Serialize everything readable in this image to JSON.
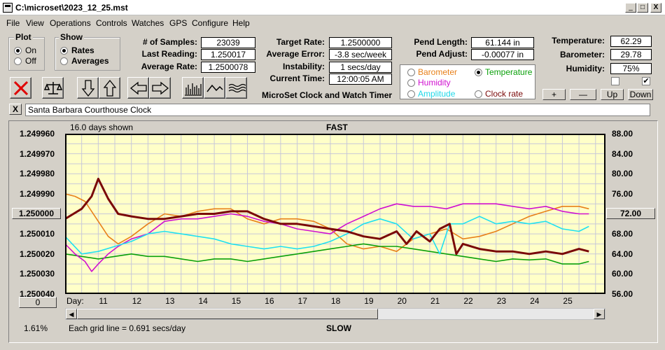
{
  "window": {
    "title": "C:\\microset\\2023_12_25.mst",
    "min": "_",
    "max": "□",
    "close": "X"
  },
  "menu": [
    "File",
    "View",
    "Operations",
    "Controls",
    "Watches",
    "GPS",
    "Configure",
    "Help"
  ],
  "plot": {
    "title": "Plot",
    "on": "On",
    "off": "Off",
    "selected": "On"
  },
  "show": {
    "title": "Show",
    "rates": "Rates",
    "averages": "Averages",
    "selected": "Rates"
  },
  "stats": {
    "samples_label": "# of Samples:",
    "samples": "23039",
    "last_label": "Last Reading:",
    "last": "1.250017",
    "avg_label": "Average Rate:",
    "avg": "1.2500078"
  },
  "rates": {
    "target_label": "Target Rate:",
    "target": "1.2500000",
    "error_label": "Average Error:",
    "error": "-3.8 sec/week",
    "instab_label": "Instability:",
    "instab": "1 secs/day",
    "time_label": "Current Time:",
    "time": "12:00:05 AM"
  },
  "pend": {
    "length_label": "Pend Length:",
    "length": "61.144 in",
    "adjust_label": "Pend Adjust:",
    "adjust": "-0.00077 in"
  },
  "env": {
    "temp_label": "Temperature:",
    "temp": "62.29",
    "baro_label": "Barometer:",
    "baro": "29.78",
    "hum_label": "Humidity:",
    "hum": "75%"
  },
  "series_select": {
    "barometer": "Barometer",
    "temperature": "Temperature",
    "humidity": "Humidity",
    "amplitude": "Amplitude",
    "clockrate": "Clock rate",
    "selected": "Temperature"
  },
  "heading": "MicroSet Clock and Watch Timer",
  "buttons": {
    "plus": "+",
    "minus": "—",
    "up": "Up",
    "down": "Down",
    "close_x": "X"
  },
  "checks": {
    "left": false,
    "right": true
  },
  "clock_name": "Santa Barbara Courthouse Clock",
  "colors": {
    "barometer": "#e8801a",
    "temperature": "#0aa00a",
    "humidity": "#d010d0",
    "amplitude": "#20e0f0",
    "clockrate": "#7a0808",
    "plot_bg": "#ffffc8"
  },
  "chart_data": {
    "type": "line",
    "days_shown": "16.0 days shown",
    "top_label": "FAST",
    "bottom_label": "SLOW",
    "grid_note": "Each grid line = 0.691 secs/day",
    "percent": "1.61%",
    "x_prefix": "Day:",
    "xlim": [
      10,
      26.3
    ],
    "x_ticks": [
      11,
      12,
      13,
      14,
      15,
      16,
      17,
      18,
      19,
      20,
      21,
      22,
      23,
      24,
      25
    ],
    "left_axis": {
      "min": 1.24996,
      "max": 1.25004,
      "inverted": true,
      "ticks": [
        "1.249960",
        "1.249970",
        "1.249980",
        "1.249990",
        "1.250000",
        "1.250010",
        "1.250020",
        "1.250030",
        "1.250040"
      ]
    },
    "right_axis": {
      "min": 56,
      "max": 88,
      "ticks": [
        "88.00",
        "84.00",
        "80.00",
        "76.00",
        "72.00",
        "68.00",
        "64.00",
        "60.00",
        "56.00"
      ]
    },
    "left_button": "1.250000",
    "right_button": "72.00",
    "bottom_button": "0",
    "series": [
      {
        "name": "Barometer",
        "x": [
          10,
          10.3,
          10.6,
          11,
          11.3,
          11.6,
          12,
          12.5,
          13,
          13.5,
          14,
          14.5,
          15,
          15.5,
          16,
          16.5,
          17,
          17.5,
          18,
          18.5,
          19,
          19.5,
          20,
          20.5,
          21,
          21.5,
          22,
          22.5,
          23,
          23.5,
          24,
          24.5,
          25,
          25.5,
          25.8
        ],
        "y": [
          76.0,
          75.5,
          74.5,
          70.5,
          67.5,
          66.0,
          67.5,
          70.0,
          72.0,
          71.5,
          72.5,
          73.0,
          73.0,
          71.0,
          70.0,
          71.0,
          71.0,
          70.5,
          69.0,
          66.0,
          65.0,
          65.5,
          64.5,
          67.0,
          68.0,
          69.0,
          67.0,
          67.5,
          68.5,
          70.0,
          71.5,
          72.5,
          73.5,
          73.5,
          73.0
        ]
      },
      {
        "name": "Temperature",
        "x": [
          10,
          10.5,
          11,
          11.5,
          12,
          12.5,
          13,
          13.5,
          14,
          14.5,
          15,
          15.5,
          16,
          16.5,
          17,
          17.5,
          18,
          18.5,
          19,
          19.5,
          20,
          20.5,
          21,
          21.5,
          22,
          22.5,
          23,
          23.5,
          24,
          24.5,
          25,
          25.5,
          25.8
        ],
        "y": [
          64.0,
          63.5,
          63.0,
          63.5,
          64.0,
          63.5,
          63.5,
          63.0,
          62.5,
          63.0,
          63.0,
          62.5,
          63.0,
          63.5,
          64.0,
          64.5,
          65.0,
          65.5,
          66.0,
          65.5,
          65.5,
          65.0,
          64.5,
          64.0,
          63.5,
          63.0,
          62.5,
          63.0,
          62.8,
          63.0,
          62.0,
          62.0,
          62.5
        ]
      },
      {
        "name": "Humidity",
        "x": [
          10,
          10.3,
          10.6,
          10.8,
          11,
          11.3,
          11.6,
          12,
          12.5,
          13,
          13.5,
          14,
          14.5,
          15,
          15.5,
          16,
          16.5,
          17,
          17.5,
          18,
          18.5,
          19,
          19.5,
          20,
          20.5,
          21,
          21.5,
          22,
          22.5,
          23,
          23.5,
          24,
          24.5,
          25,
          25.5,
          25.8
        ],
        "y": [
          66.0,
          64.0,
          62.5,
          60.5,
          62.0,
          64.0,
          65.5,
          67.0,
          68.0,
          70.5,
          71.0,
          71.0,
          71.5,
          72.0,
          71.5,
          70.5,
          70.0,
          69.0,
          68.5,
          68.0,
          70.0,
          71.5,
          73.0,
          74.0,
          73.5,
          73.5,
          73.0,
          74.0,
          74.0,
          74.0,
          73.5,
          73.0,
          73.5,
          72.5,
          72.0,
          72.0
        ]
      },
      {
        "name": "Amplitude",
        "x": [
          10,
          10.5,
          11,
          11.5,
          12,
          12.5,
          13,
          13.5,
          14,
          14.5,
          15,
          15.5,
          16,
          16.5,
          17,
          17.5,
          18,
          18.5,
          19,
          19.5,
          20,
          20.5,
          21,
          21.3,
          21.6,
          22,
          22.5,
          23,
          23.5,
          24,
          24.5,
          25,
          25.5,
          25.8
        ],
        "y": [
          67.5,
          64.0,
          64.5,
          65.5,
          66.5,
          68.0,
          68.5,
          68.0,
          67.5,
          67.0,
          66.0,
          65.5,
          65.0,
          65.5,
          65.0,
          65.5,
          66.5,
          68.0,
          70.0,
          71.0,
          70.0,
          67.0,
          68.0,
          64.0,
          70.0,
          70.0,
          71.5,
          70.0,
          70.5,
          70.0,
          70.5,
          69.0,
          68.5,
          69.5
        ]
      },
      {
        "name": "Clock rate",
        "x": [
          10,
          10.5,
          10.8,
          11,
          11.3,
          11.6,
          12,
          12.5,
          13,
          13.5,
          14,
          14.5,
          15,
          15.5,
          16,
          16.5,
          17,
          17.5,
          18,
          18.5,
          19,
          19.5,
          20,
          20.3,
          20.6,
          21,
          21.3,
          21.6,
          21.8,
          22,
          22.5,
          23,
          23.5,
          24,
          24.5,
          25,
          25.5,
          25.8
        ],
        "y": [
          71.0,
          73.0,
          75.5,
          79.0,
          75.0,
          72.0,
          71.5,
          71.0,
          71.0,
          71.5,
          72.0,
          72.0,
          72.5,
          72.5,
          71.0,
          70.0,
          70.0,
          69.5,
          69.0,
          68.5,
          67.5,
          67.0,
          68.5,
          66.0,
          68.5,
          66.5,
          69.0,
          70.0,
          64.0,
          66.0,
          65.0,
          64.5,
          64.5,
          64.0,
          64.5,
          64.0,
          65.0,
          64.5
        ]
      }
    ]
  }
}
